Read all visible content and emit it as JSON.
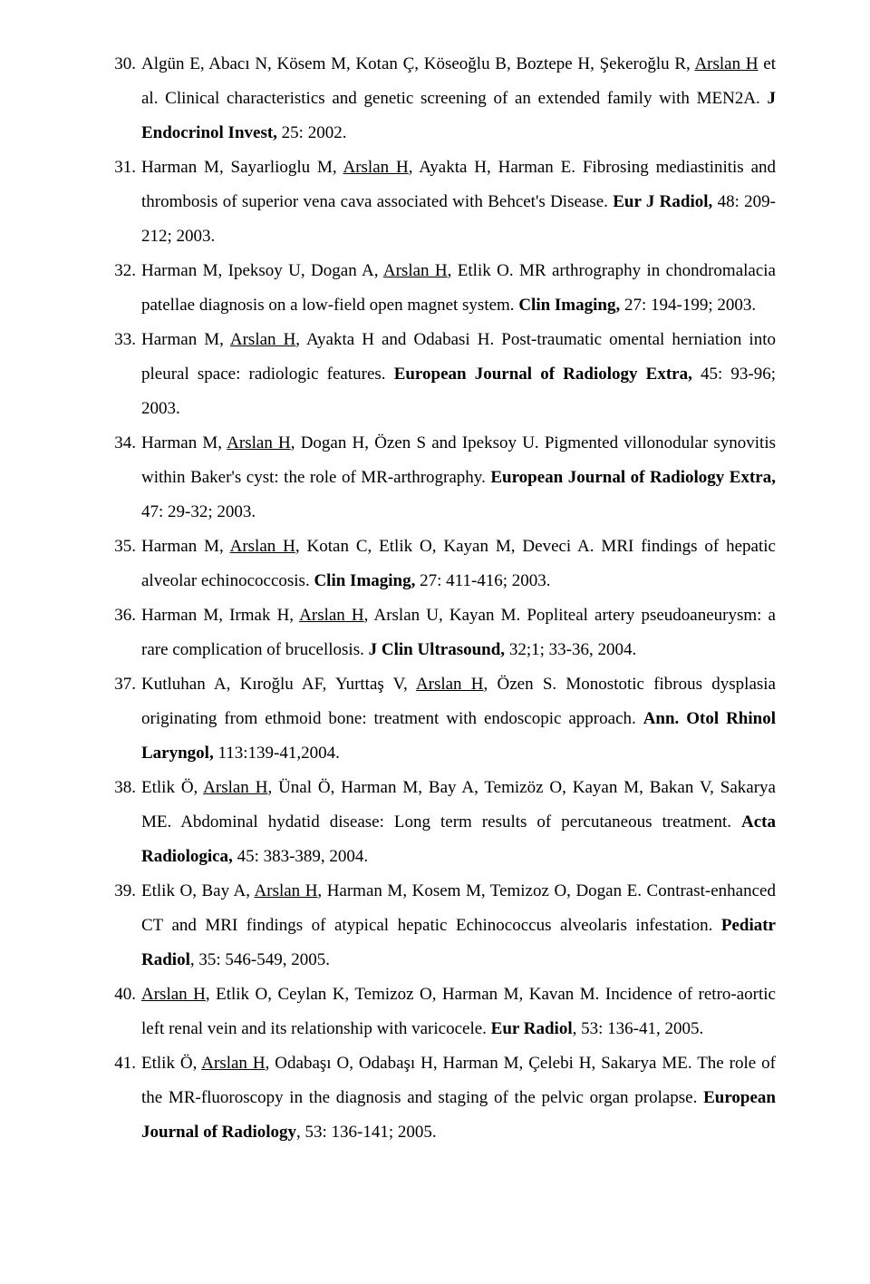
{
  "references": [
    {
      "num": "30.",
      "segments": [
        {
          "t": "Algün E, Abacı N, Kösem M, Kotan Ç, Köseoğlu B, Boztepe H, Şekeroğlu R, "
        },
        {
          "t": "Arslan H",
          "u": true
        },
        {
          "t": " et al. Clinical characteristics and genetic screening of an extended family with MEN2A. "
        },
        {
          "t": "J Endocrinol Invest,",
          "b": true
        },
        {
          "t": " 25: 2002."
        }
      ]
    },
    {
      "num": "31.",
      "segments": [
        {
          "t": "Harman M, Sayarlioglu M, "
        },
        {
          "t": "Arslan H",
          "u": true
        },
        {
          "t": ", Ayakta H, Harman E. Fibrosing mediastinitis and thrombosis of superior vena cava associated with Behcet's Disease. "
        },
        {
          "t": "Eur J Radiol,",
          "b": true
        },
        {
          "t": " 48: 209-212; 2003."
        }
      ]
    },
    {
      "num": "32.",
      "segments": [
        {
          "t": "Harman M, Ipeksoy U, Dogan A, "
        },
        {
          "t": "Arslan H",
          "u": true
        },
        {
          "t": ", Etlik O.  MR arthrography in chondromalacia patellae diagnosis on a low-field open magnet system. "
        },
        {
          "t": "Clin Imaging,",
          "b": true
        },
        {
          "t": " 27: 194-199; 2003."
        }
      ]
    },
    {
      "num": "33.",
      "segments": [
        {
          "t": "Harman M, "
        },
        {
          "t": "Arslan H",
          "u": true
        },
        {
          "t": ", Ayakta H and Odabasi H. Post-traumatic omental herniation into pleural space: radiologic features. "
        },
        {
          "t": "European Journal of Radiology Extra,",
          "b": true
        },
        {
          "t": " 45: 93-96; 2003."
        }
      ]
    },
    {
      "num": "34.",
      "segments": [
        {
          "t": "Harman M, "
        },
        {
          "t": "Arslan H",
          "u": true
        },
        {
          "t": ", Dogan H, Özen S and Ipeksoy U. Pigmented villonodular synovitis within Baker's cyst: the role of MR-arthrography. "
        },
        {
          "t": "European Journal of Radiology Extra,",
          "b": true
        },
        {
          "t": " 47: 29-32; 2003."
        }
      ]
    },
    {
      "num": "35.",
      "segments": [
        {
          "t": "Harman M, "
        },
        {
          "t": "Arslan H",
          "u": true
        },
        {
          "t": ", Kotan C, Etlik O, Kayan M, Deveci A. MRI findings of hepatic alveolar echinococcosis. "
        },
        {
          "t": "Clin Imaging,",
          "b": true
        },
        {
          "t": " 27: 411-416; 2003."
        }
      ]
    },
    {
      "num": "36.",
      "segments": [
        {
          "t": "Harman M, Irmak H, "
        },
        {
          "t": "Arslan H",
          "u": true
        },
        {
          "t": ", Arslan U, Kayan M. Popliteal artery pseudoaneurysm: a rare complication of brucellosis. "
        },
        {
          "t": "J Clin Ultrasound,",
          "b": true
        },
        {
          "t": " 32;1; 33-36, 2004."
        }
      ]
    },
    {
      "num": "37.",
      "segments": [
        {
          "t": "Kutluhan A, Kıroğlu AF, Yurttaş V, "
        },
        {
          "t": "Arslan H",
          "u": true
        },
        {
          "t": ", Özen S. Monostotic fibrous dysplasia originating from ethmoid bone: treatment with endoscopic approach. "
        },
        {
          "t": "Ann. Otol Rhinol Laryngol,",
          "b": true
        },
        {
          "t": " 113:139-41,2004."
        }
      ]
    },
    {
      "num": "38.",
      "segments": [
        {
          "t": " Etlik Ö, "
        },
        {
          "t": "Arslan H",
          "u": true
        },
        {
          "t": ", Ünal Ö, Harman M, Bay A, Temizöz O, Kayan M, Bakan V, Sakarya ME. Abdominal hydatid disease: Long term results of percutaneous treatment. "
        },
        {
          "t": "Acta Radiologica,",
          "b": true
        },
        {
          "t": "  45: 383-389, 2004."
        }
      ]
    },
    {
      "num": "39.",
      "segments": [
        {
          "t": "Etlik O, Bay A, "
        },
        {
          "t": "Arslan H",
          "u": true
        },
        {
          "t": ", Harman M, Kosem M, Temizoz O, Dogan E. Contrast-enhanced CT and MRI findings of atypical hepatic Echinococcus alveolaris infestation. "
        },
        {
          "t": "Pediatr Radiol",
          "b": true
        },
        {
          "t": ", 35: 546-549, 2005."
        }
      ]
    },
    {
      "num": "40.",
      "segments": [
        {
          "t": " Arslan H",
          "u": true
        },
        {
          "t": ", Etlik O, Ceylan K, Temizoz O, Harman M, Kavan M. Incidence of retro-aortic left renal vein and its relationship with varicocele. "
        },
        {
          "t": "Eur Radiol",
          "b": true
        },
        {
          "t": ", 53: 136-41, 2005."
        }
      ]
    },
    {
      "num": "41.",
      "segments": [
        {
          "t": "Etlik Ö, "
        },
        {
          "t": "Arslan H",
          "u": true
        },
        {
          "t": ", Odabaşı O, Odabaşı H, Harman M, Çelebi H, Sakarya ME. The role of the MR-fluoroscopy in the diagnosis and staging of the pelvic organ prolapse. "
        },
        {
          "t": "European Journal of Radiology",
          "b": true
        },
        {
          "t": ", 53: 136-141; 2005."
        }
      ]
    }
  ]
}
